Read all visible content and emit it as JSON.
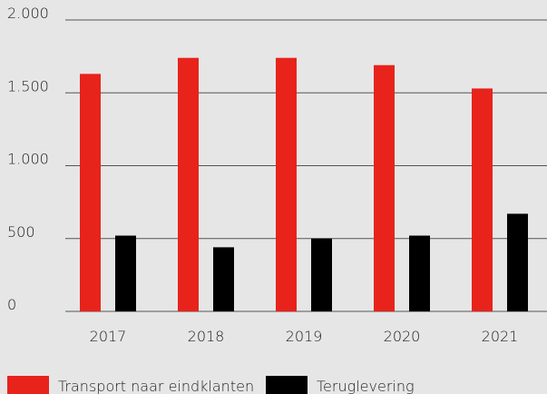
{
  "chart_data": {
    "type": "bar",
    "categories": [
      "2017",
      "2018",
      "2019",
      "2020",
      "2021"
    ],
    "series": [
      {
        "name": "Transport naar eindklanten",
        "color": "#e8231b",
        "values": [
          1630,
          1740,
          1740,
          1690,
          1530
        ]
      },
      {
        "name": "Teruglevering",
        "color": "#000000",
        "values": [
          520,
          440,
          500,
          520,
          670
        ]
      }
    ],
    "ylim": [
      0,
      2000
    ],
    "yticks": [
      0,
      500,
      {
        "value": 1000,
        "label": "1.000"
      },
      {
        "value": 1500,
        "label": "1.500"
      },
      {
        "value": 2000,
        "label": "2.000"
      }
    ],
    "grid": true,
    "legend": "bottom"
  }
}
